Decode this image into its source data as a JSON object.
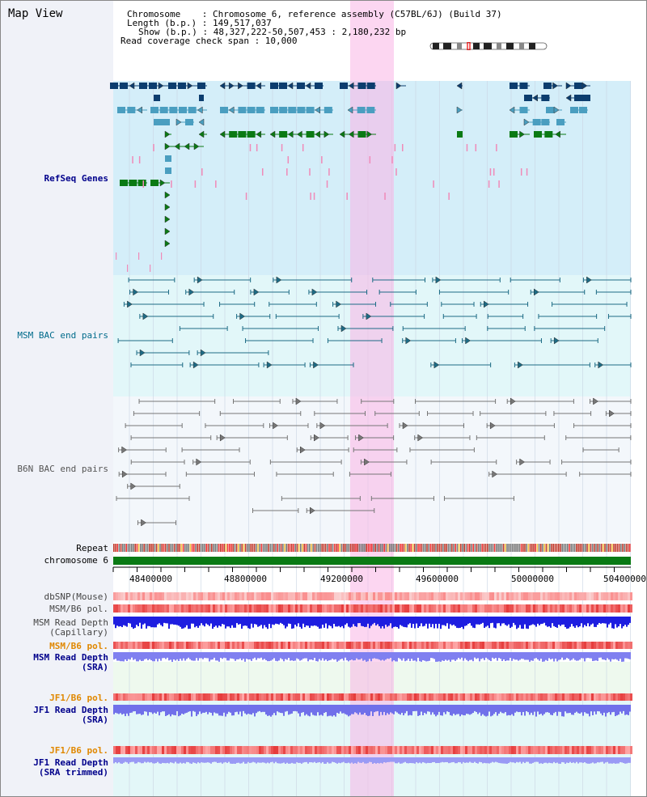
{
  "view_title": "Map View",
  "info": {
    "line1": "Chromosome    : Chromosome 6, reference assembly (C57BL/6J) (Build 37)",
    "line2": "Length (b.p.) : 149,517,037",
    "line3": "Show (b.p.) : 48,327,222-50,507,453 : 2,180,232 bp",
    "line4": "Read coverage check span : 10,000"
  },
  "tracks": {
    "refseq": "RefSeq Genes",
    "msm_bac": "MSM BAC end pairs",
    "b6n_bac": "B6N BAC end pairs",
    "repeat": "Repeat",
    "chromosome": "chromosome 6",
    "dbsnp": "dbSNP(Mouse)",
    "msm_b6_pol_1": "MSM/B6 pol.",
    "msm_read_depth_cap_1": "MSM Read Depth",
    "msm_read_depth_cap_2": "(Capillary)",
    "msm_b6_pol_2": "MSM/B6 pol.",
    "msm_read_depth_sra_1": "MSM Read Depth",
    "msm_read_depth_sra_2": "(SRA)",
    "jf1_b6_pol_1": "JF1/B6 pol.",
    "jf1_read_depth_sra_1": "JF1 Read Depth",
    "jf1_read_depth_sra_2": "(SRA)",
    "jf1_b6_pol_2": "JF1/B6 pol.",
    "jf1_read_depth_trim_1": "JF1 Read Depth",
    "jf1_read_depth_trim_2": "(SRA trimmed)"
  },
  "axis_ticks": [
    "48400000",
    "48800000",
    "49200000",
    "49600000",
    "50000000",
    "50400000"
  ],
  "colors": {
    "gene_navy": "#0c3d6e",
    "gene_blue": "#4a9ec0",
    "gene_green": "#0a7a14",
    "bac_teal": "#1d6b85",
    "bac_gray": "#777777",
    "highlight": "#f8c8ec",
    "chromosome": "#0a7a14"
  }
}
